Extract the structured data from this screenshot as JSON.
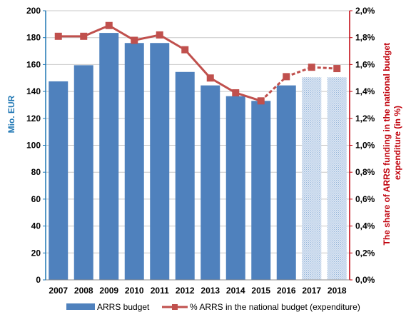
{
  "chart_data": {
    "type": "bar",
    "categories": [
      "2007",
      "2008",
      "2009",
      "2010",
      "2011",
      "2012",
      "2013",
      "2014",
      "2015",
      "2016",
      "2017",
      "2018"
    ],
    "series": [
      {
        "name": "ARRS budget",
        "type": "bar",
        "axis": "left",
        "values": [
          147.5,
          159.5,
          183.5,
          176.0,
          176.0,
          154.5,
          144.5,
          136.5,
          133.0,
          144.5,
          150.5,
          150.5
        ],
        "color": "#4f81bd",
        "projected_from_index": 10
      },
      {
        "name": "% ARRS in the national budget (expenditure)",
        "type": "line",
        "axis": "right",
        "values": [
          1.81,
          1.81,
          1.89,
          1.78,
          1.82,
          1.71,
          1.5,
          1.39,
          1.33,
          1.51,
          1.58,
          1.57
        ],
        "color": "#c0504d",
        "dashed_from_index": 8
      }
    ],
    "ylabel_left": "Mio. EUR",
    "ylabel_right_lines": [
      "The share of ARRS funding in the national budget",
      "expenditure (in %)"
    ],
    "ylim_left": [
      0,
      200
    ],
    "yticks_left": [
      "0",
      "20",
      "40",
      "60",
      "80",
      "100",
      "120",
      "140",
      "160",
      "180",
      "200"
    ],
    "ylim_right": [
      0,
      2.0
    ],
    "yticks_right": [
      "0,0%",
      "0,2%",
      "0,4%",
      "0,6%",
      "0,8%",
      "1,0%",
      "1,2%",
      "1,4%",
      "1,6%",
      "1,8%",
      "2,0%"
    ],
    "grid": "horizontal",
    "legend_position": "bottom",
    "colors": {
      "left_axis_label": "#1f77b4",
      "right_axis_label": "#c0000b"
    }
  },
  "legend": {
    "bar_label": "ARRS budget",
    "line_label": "% ARRS in the national budget (expenditure)"
  }
}
